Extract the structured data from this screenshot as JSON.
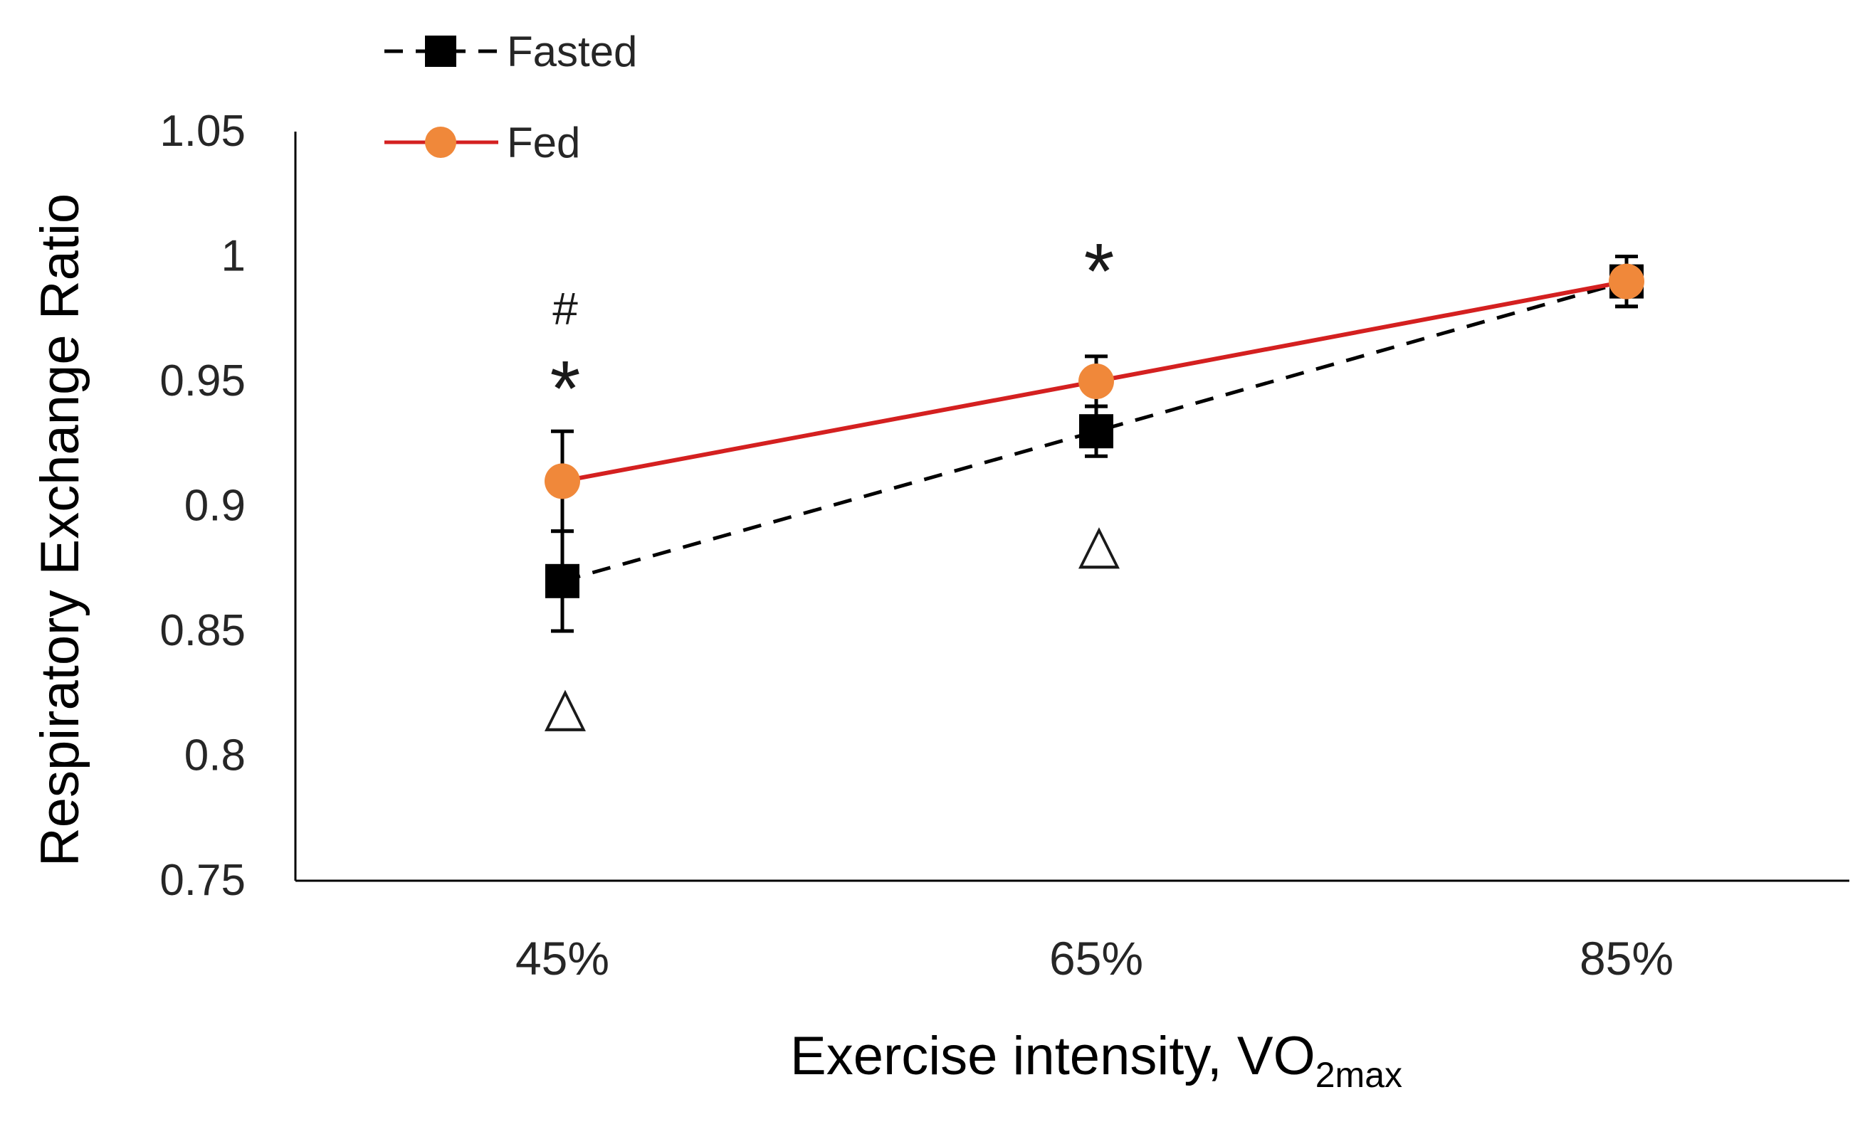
{
  "chart_data": {
    "type": "line",
    "title": "",
    "xlabel": "Exercise intensity, VO",
    "xlabel_subscript": "2max",
    "ylabel": "Respiratory Exchange Ratio",
    "categories": [
      "45%",
      "65%",
      "85%"
    ],
    "ylim": [
      0.75,
      1.05
    ],
    "yticks": [
      0.75,
      0.8,
      0.85,
      0.9,
      0.95,
      1,
      1.05
    ],
    "ytick_labels": [
      "0.75",
      "0.8",
      "0.85",
      "0.9",
      "0.95",
      "1",
      "1.05"
    ],
    "grid": false,
    "legend_position": "top-left",
    "series": [
      {
        "name": "Fasted",
        "values": [
          0.87,
          0.93,
          0.99
        ],
        "errors": [
          0.02,
          0.01,
          0.01
        ],
        "color": "#000000",
        "line_style": "dashed",
        "marker": "square"
      },
      {
        "name": "Fed",
        "values": [
          0.91,
          0.95,
          0.99
        ],
        "errors": [
          0.02,
          0.01,
          0.01
        ],
        "color": "#d42020",
        "marker_color": "#f0883a",
        "line_style": "solid",
        "marker": "circle"
      }
    ],
    "annotations": [
      {
        "text": "#",
        "category": "45%",
        "y": 0.979
      },
      {
        "text": "*",
        "category": "45%",
        "y": 0.95
      },
      {
        "text": "△",
        "category": "45%",
        "y": 0.82
      },
      {
        "text": "*",
        "category": "65%",
        "y": 0.997
      },
      {
        "text": "△",
        "category": "65%",
        "y": 0.885
      }
    ]
  }
}
